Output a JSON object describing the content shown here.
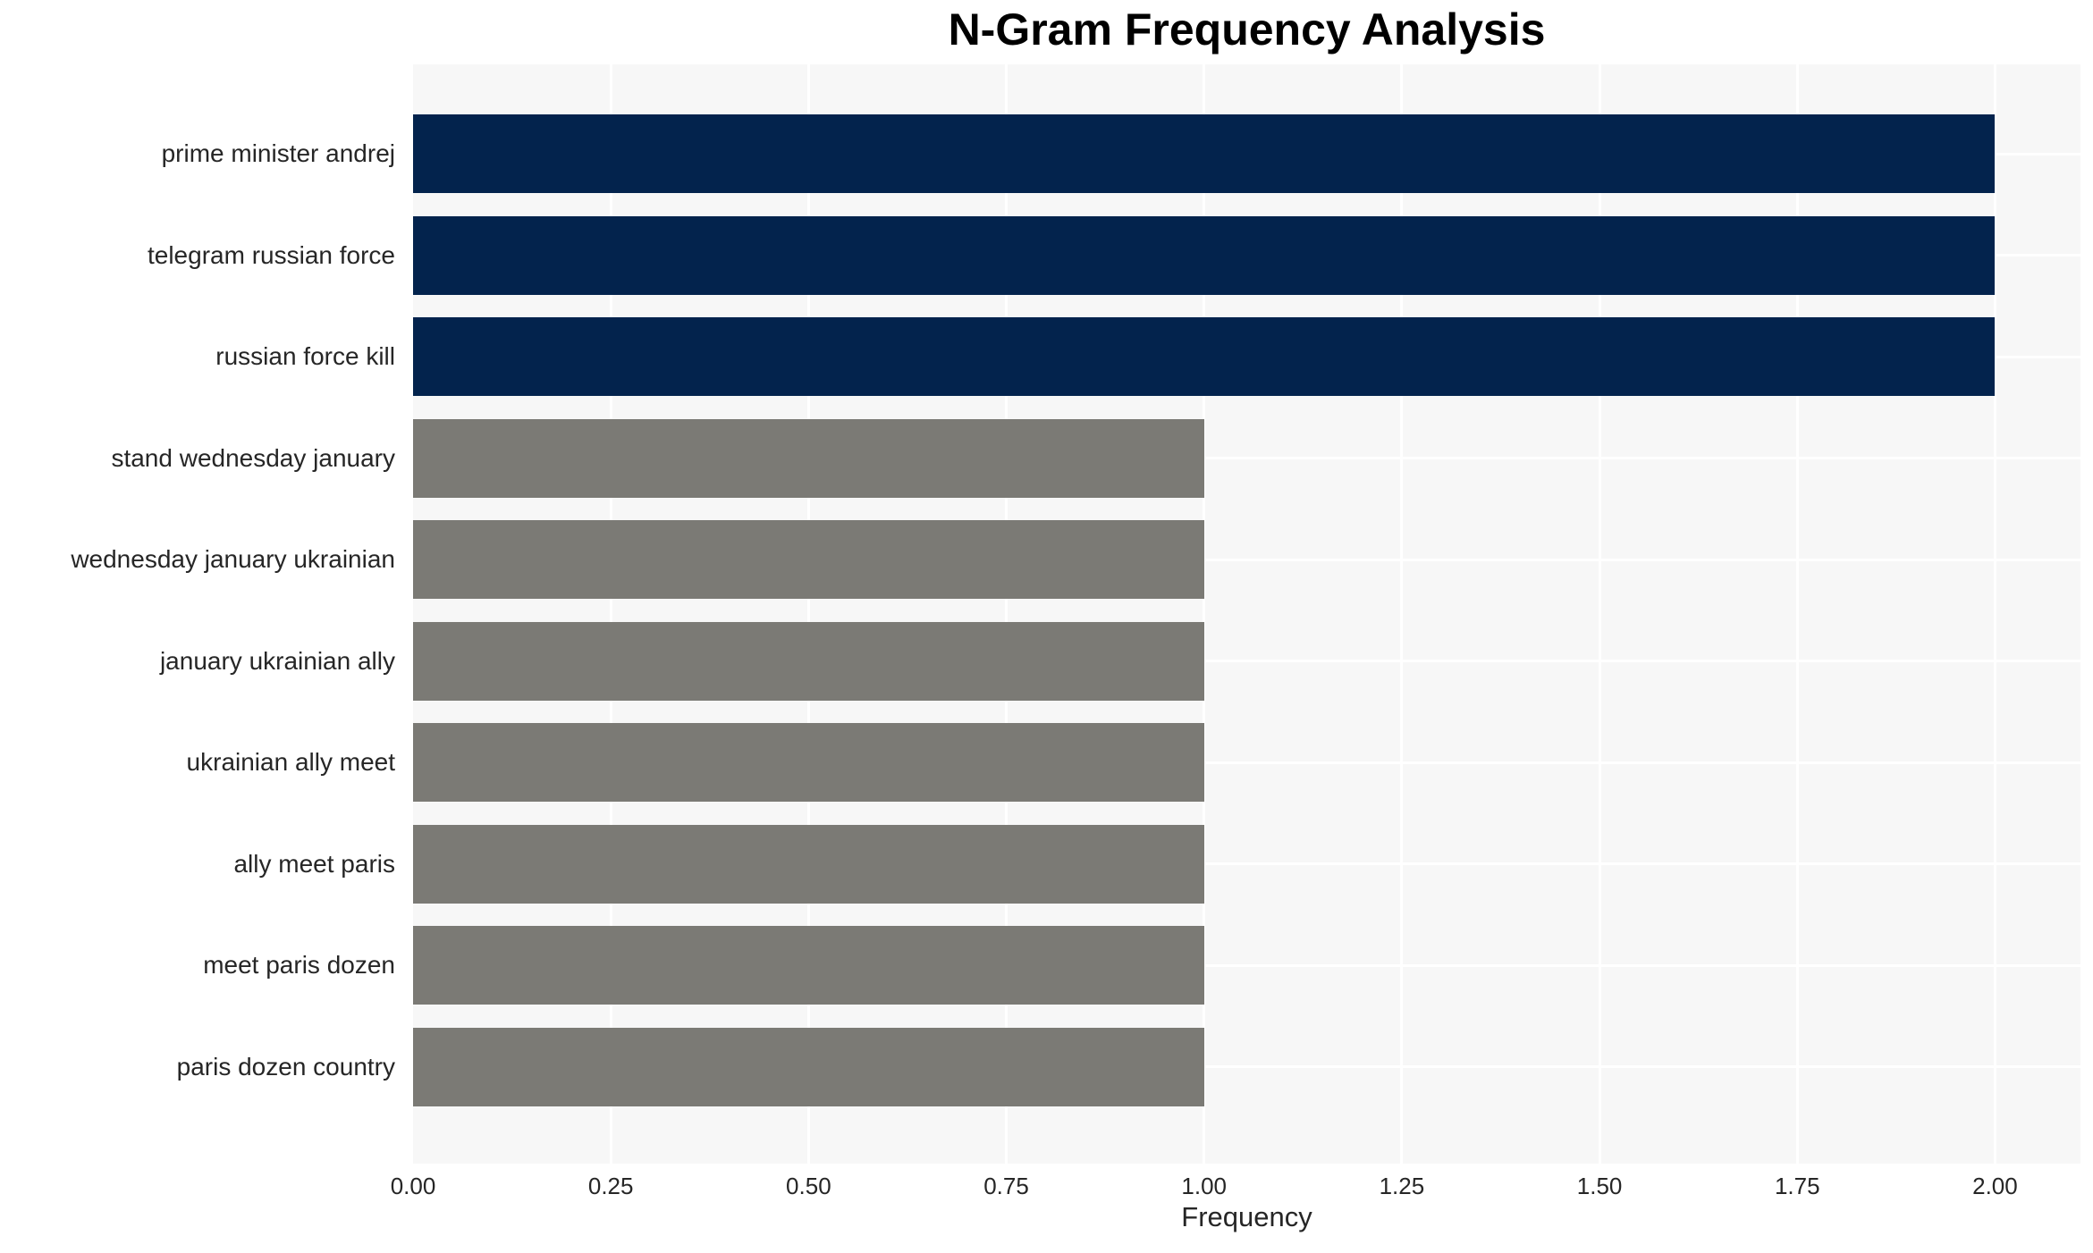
{
  "chart_data": {
    "type": "bar",
    "orientation": "horizontal",
    "title": "N-Gram Frequency Analysis",
    "xlabel": "Frequency",
    "ylabel": "",
    "categories": [
      "prime minister andrej",
      "telegram russian force",
      "russian force kill",
      "stand wednesday january",
      "wednesday january ukrainian",
      "january ukrainian ally",
      "ukrainian ally meet",
      "ally meet paris",
      "meet paris dozen",
      "paris dozen country"
    ],
    "values": [
      2,
      2,
      2,
      1,
      1,
      1,
      1,
      1,
      1,
      1
    ],
    "bar_colors": [
      "#03234d",
      "#03234d",
      "#03234d",
      "#7b7a75",
      "#7b7a75",
      "#7b7a75",
      "#7b7a75",
      "#7b7a75",
      "#7b7a75",
      "#7b7a75"
    ],
    "xlim": [
      0,
      2.108
    ],
    "xticks": [
      0,
      0.25,
      0.5,
      0.75,
      1.0,
      1.25,
      1.5,
      1.75,
      2.0
    ],
    "xtick_labels": [
      "0.00",
      "0.25",
      "0.50",
      "0.75",
      "1.00",
      "1.25",
      "1.50",
      "1.75",
      "2.00"
    ],
    "grid": true,
    "legend": false,
    "colors": {
      "plot_background": "#f7f7f7",
      "figure_background": "#ffffff",
      "gridline": "#ffffff",
      "highlight_bar": "#03234d",
      "default_bar": "#7b7a75",
      "tick_text": "#262626",
      "title_text": "#000000"
    }
  }
}
